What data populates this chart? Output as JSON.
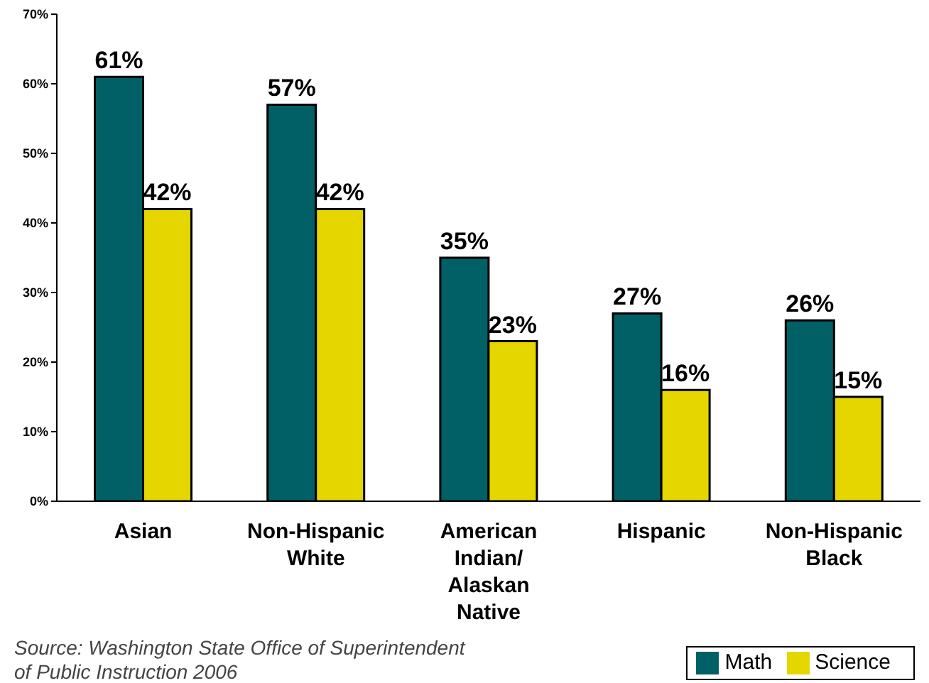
{
  "chart_data": {
    "type": "bar",
    "categories": [
      "Asian",
      "Non-Hispanic White",
      "American Indian/ Alaskan Native",
      "Hispanic",
      "Non-Hispanic Black"
    ],
    "series": [
      {
        "name": "Math",
        "color": "#006066",
        "values": [
          61,
          57,
          35,
          27,
          26
        ],
        "value_labels": [
          "61%",
          "57%",
          "35%",
          "27%",
          "26%"
        ]
      },
      {
        "name": "Science",
        "color": "#e6d600",
        "values": [
          42,
          42,
          23,
          16,
          15
        ],
        "value_labels": [
          "42%",
          "42%",
          "23%",
          "16%",
          "15%"
        ]
      }
    ],
    "ylim": [
      0,
      70
    ],
    "yticks": [
      {
        "value": 0,
        "label": "0%"
      },
      {
        "value": 10,
        "label": "10%"
      },
      {
        "value": 20,
        "label": "20%"
      },
      {
        "value": 30,
        "label": "30%"
      },
      {
        "value": 40,
        "label": "40%"
      },
      {
        "value": 50,
        "label": "50%"
      },
      {
        "value": 60,
        "label": "60%"
      },
      {
        "value": 70,
        "label": "70%"
      }
    ],
    "grid": false,
    "legend": "bottom right",
    "annotations": [
      "Source: Washington State Office of Superintendent of Public Instruction 2006"
    ]
  }
}
